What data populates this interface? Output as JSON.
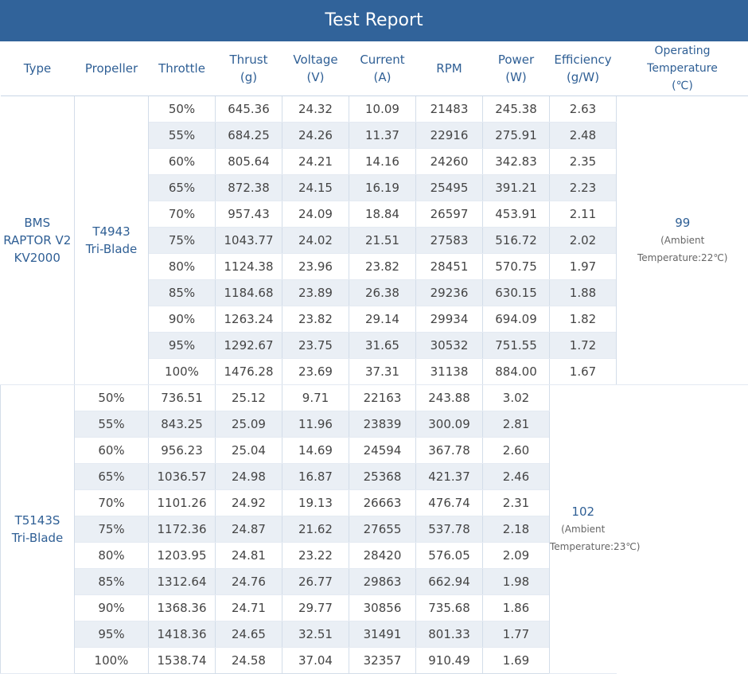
{
  "title": "Test Report",
  "headers": {
    "type": "Type",
    "propeller": "Propeller",
    "throttle": "Throttle",
    "thrust": [
      "Thrust",
      "(g)"
    ],
    "voltage": [
      "Voltage",
      "(V)"
    ],
    "current": [
      "Current",
      "(A)"
    ],
    "rpm": "RPM",
    "power": [
      "Power",
      "(W)"
    ],
    "efficiency": [
      "Efficiency",
      "(g/W)"
    ],
    "temperature": [
      "Operating",
      "Temperature",
      "(℃)"
    ]
  },
  "type": [
    "BMS",
    "RAPTOR V2",
    "KV2000"
  ],
  "groups": [
    {
      "propeller": [
        "T4943",
        "Tri-Blade"
      ],
      "temperature": "99",
      "ambient": [
        "(Ambient",
        "Temperature:22℃)"
      ],
      "rows": [
        [
          "50%",
          "645.36",
          "24.32",
          "10.09",
          "21483",
          "245.38",
          "2.63"
        ],
        [
          "55%",
          "684.25",
          "24.26",
          "11.37",
          "22916",
          "275.91",
          "2.48"
        ],
        [
          "60%",
          "805.64",
          "24.21",
          "14.16",
          "24260",
          "342.83",
          "2.35"
        ],
        [
          "65%",
          "872.38",
          "24.15",
          "16.19",
          "25495",
          "391.21",
          "2.23"
        ],
        [
          "70%",
          "957.43",
          "24.09",
          "18.84",
          "26597",
          "453.91",
          "2.11"
        ],
        [
          "75%",
          "1043.77",
          "24.02",
          "21.51",
          "27583",
          "516.72",
          "2.02"
        ],
        [
          "80%",
          "1124.38",
          "23.96",
          "23.82",
          "28451",
          "570.75",
          "1.97"
        ],
        [
          "85%",
          "1184.68",
          "23.89",
          "26.38",
          "29236",
          "630.15",
          "1.88"
        ],
        [
          "90%",
          "1263.24",
          "23.82",
          "29.14",
          "29934",
          "694.09",
          "1.82"
        ],
        [
          "95%",
          "1292.67",
          "23.75",
          "31.65",
          "30532",
          "751.55",
          "1.72"
        ],
        [
          "100%",
          "1476.28",
          "23.69",
          "37.31",
          "31138",
          "884.00",
          "1.67"
        ]
      ]
    },
    {
      "propeller": [
        "T5143S",
        "Tri-Blade"
      ],
      "temperature": "102",
      "ambient": [
        "(Ambient",
        "Temperature:23℃)"
      ],
      "rows": [
        [
          "50%",
          "736.51",
          "25.12",
          "9.71",
          "22163",
          "243.88",
          "3.02"
        ],
        [
          "55%",
          "843.25",
          "25.09",
          "11.96",
          "23839",
          "300.09",
          "2.81"
        ],
        [
          "60%",
          "956.23",
          "25.04",
          "14.69",
          "24594",
          "367.78",
          "2.60"
        ],
        [
          "65%",
          "1036.57",
          "24.98",
          "16.87",
          "25368",
          "421.37",
          "2.46"
        ],
        [
          "70%",
          "1101.26",
          "24.92",
          "19.13",
          "26663",
          "476.74",
          "2.31"
        ],
        [
          "75%",
          "1172.36",
          "24.87",
          "21.62",
          "27655",
          "537.78",
          "2.18"
        ],
        [
          "80%",
          "1203.95",
          "24.81",
          "23.22",
          "28420",
          "576.05",
          "2.09"
        ],
        [
          "85%",
          "1312.64",
          "24.76",
          "26.77",
          "29863",
          "662.94",
          "1.98"
        ],
        [
          "90%",
          "1368.36",
          "24.71",
          "29.77",
          "30856",
          "735.68",
          "1.86"
        ],
        [
          "95%",
          "1418.36",
          "24.65",
          "32.51",
          "31491",
          "801.33",
          "1.77"
        ],
        [
          "100%",
          "1538.74",
          "24.58",
          "37.04",
          "32357",
          "910.49",
          "1.69"
        ]
      ]
    }
  ]
}
